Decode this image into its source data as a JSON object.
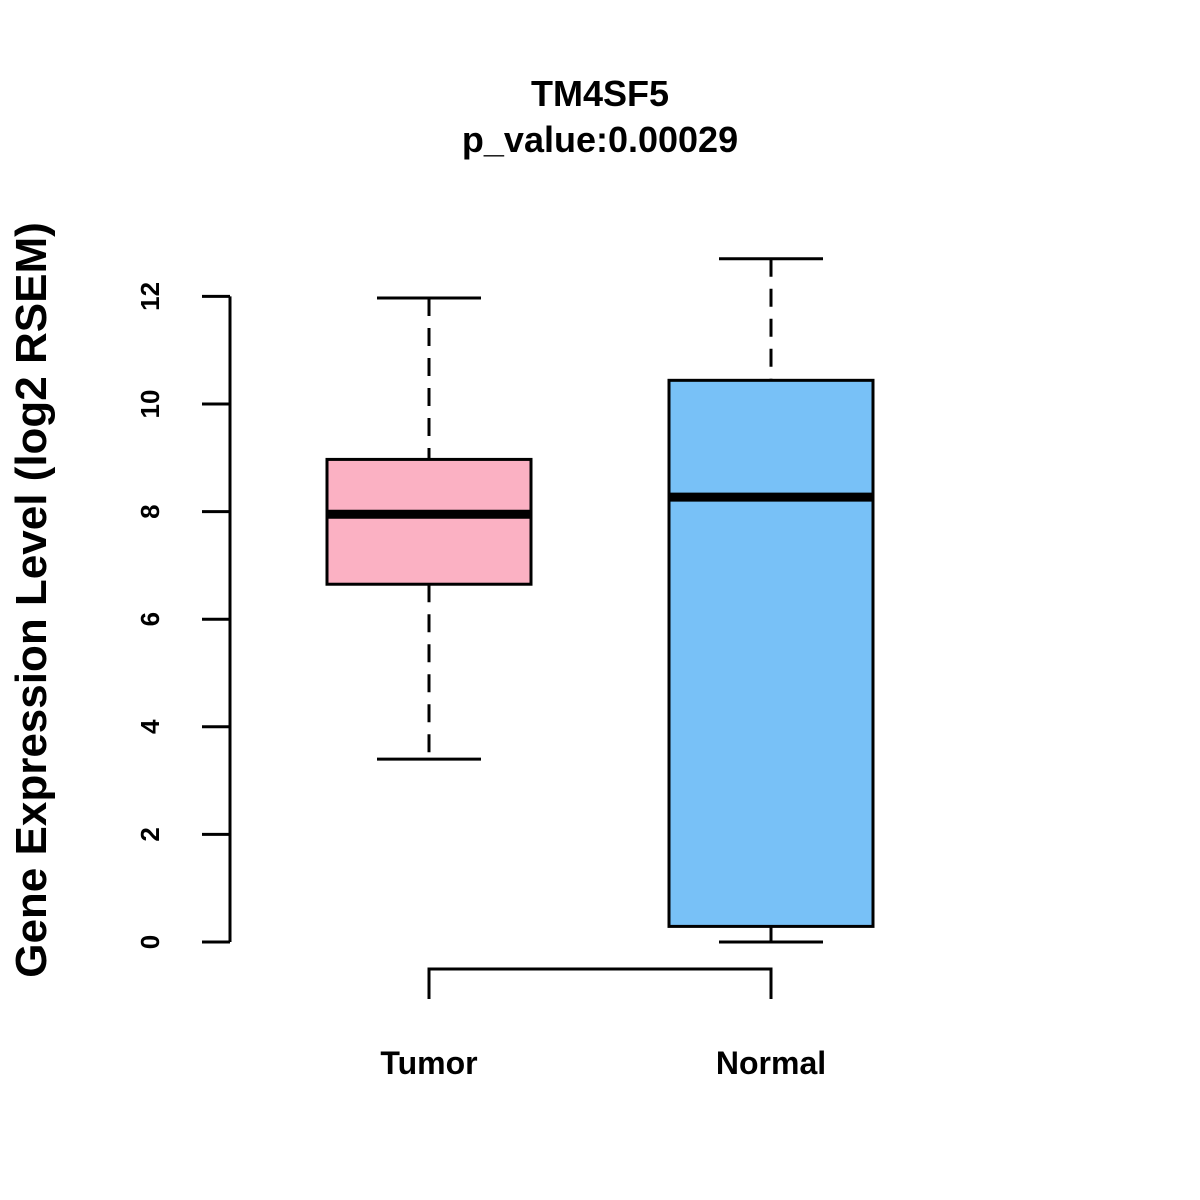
{
  "chart_data": {
    "type": "boxplot",
    "title": "TM4SF5",
    "subtitle": "p_value:0.00029",
    "xlabel": "",
    "ylabel": "Gene Expression Level (log2 RSEM)",
    "ylim": [
      0,
      12
    ],
    "yticks": [
      0,
      2,
      4,
      6,
      8,
      10,
      12
    ],
    "categories": [
      "Tumor",
      "Normal"
    ],
    "boxes": [
      {
        "name": "Tumor",
        "whisker_low": 3.4,
        "q1": 6.65,
        "median": 7.95,
        "q3": 8.97,
        "whisker_high": 11.97,
        "color": "#FBB1C3"
      },
      {
        "name": "Normal",
        "whisker_low": 0.0,
        "q1": 0.29,
        "median": 8.27,
        "q3": 10.44,
        "whisker_high": 12.7,
        "color": "#78C1F7"
      }
    ],
    "comparison_bracket": [
      "Tumor",
      "Normal"
    ],
    "grid": false
  }
}
